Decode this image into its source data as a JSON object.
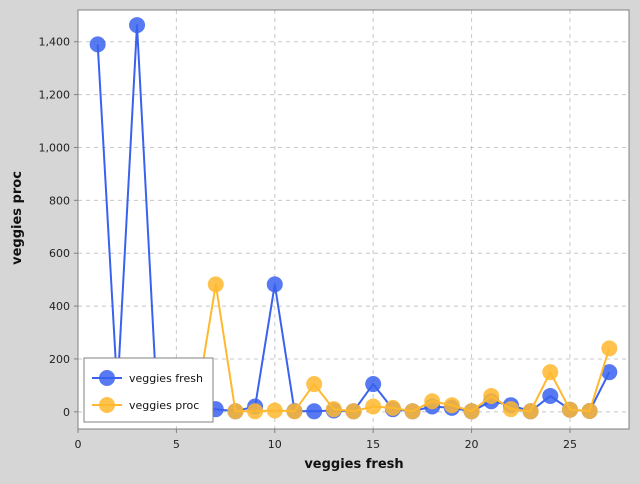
{
  "chart_data": {
    "type": "line",
    "xlabel": "veggies fresh",
    "ylabel": "veggies proc",
    "xlim": [
      0,
      28
    ],
    "ylim": [
      -65,
      1520
    ],
    "x_ticks": [
      0,
      5,
      10,
      15,
      20,
      25
    ],
    "x_tick_labels": [
      "0",
      "5",
      "10",
      "15",
      "20",
      "25"
    ],
    "y_ticks": [
      0,
      200,
      400,
      600,
      800,
      1000,
      1200,
      1400
    ],
    "y_tick_labels": [
      "0",
      "200",
      "400",
      "600",
      "800",
      "1,000",
      "1,200",
      "1,400"
    ],
    "grid": true,
    "legend_position": "bottom-left",
    "series": [
      {
        "name": "veggies fresh",
        "color": "#3a62ee",
        "x": [
          1,
          2,
          3,
          4,
          5,
          6,
          7,
          8,
          9,
          10,
          11,
          12,
          13,
          14,
          15,
          16,
          17,
          18,
          19,
          20,
          21,
          22,
          23,
          24,
          25,
          26,
          27
        ],
        "y": [
          1390,
          80,
          1463,
          60,
          20,
          15,
          10,
          2,
          20,
          482,
          3,
          2,
          5,
          2,
          105,
          10,
          2,
          20,
          15,
          2,
          40,
          25,
          2,
          60,
          8,
          3,
          150
        ]
      },
      {
        "name": "veggies proc",
        "color": "#ffb92e",
        "x": [
          1,
          2,
          3,
          4,
          5,
          6,
          7,
          8,
          9,
          10,
          11,
          12,
          13,
          14,
          15,
          16,
          17,
          18,
          19,
          20,
          21,
          22,
          23,
          24,
          25,
          26,
          27
        ],
        "y": [
          30,
          20,
          40,
          30,
          25,
          30,
          482,
          2,
          2,
          5,
          2,
          105,
          10,
          2,
          20,
          15,
          2,
          40,
          25,
          2,
          60,
          10,
          2,
          150,
          8,
          3,
          240
        ]
      }
    ]
  }
}
